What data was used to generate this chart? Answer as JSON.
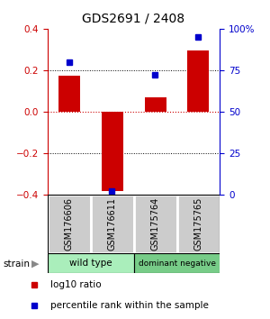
{
  "title": "GDS2691 / 2408",
  "samples": [
    "GSM176606",
    "GSM176611",
    "GSM175764",
    "GSM175765"
  ],
  "log10_ratio": [
    0.175,
    -0.385,
    0.07,
    0.295
  ],
  "percentile_rank": [
    80,
    2,
    72,
    95
  ],
  "ylim_left": [
    -0.4,
    0.4
  ],
  "ylim_right": [
    0,
    100
  ],
  "yticks_left": [
    -0.4,
    -0.2,
    0.0,
    0.2,
    0.4
  ],
  "yticks_right": [
    0,
    25,
    50,
    75,
    100
  ],
  "ytick_labels_right": [
    "0",
    "25",
    "50",
    "75",
    "100%"
  ],
  "bar_color": "#cc0000",
  "dot_color": "#0000cc",
  "groups": [
    {
      "label": "wild type",
      "samples": [
        0,
        1
      ],
      "color": "#aaeebb"
    },
    {
      "label": "dominant negative",
      "samples": [
        2,
        3
      ],
      "color": "#77cc88"
    }
  ],
  "group_label": "strain",
  "legend_bar_label": "log10 ratio",
  "legend_dot_label": "percentile rank within the sample",
  "dotted_line_color": "#000000",
  "zero_line_color": "#cc0000",
  "sample_box_color": "#cccccc",
  "background_color": "#ffffff"
}
